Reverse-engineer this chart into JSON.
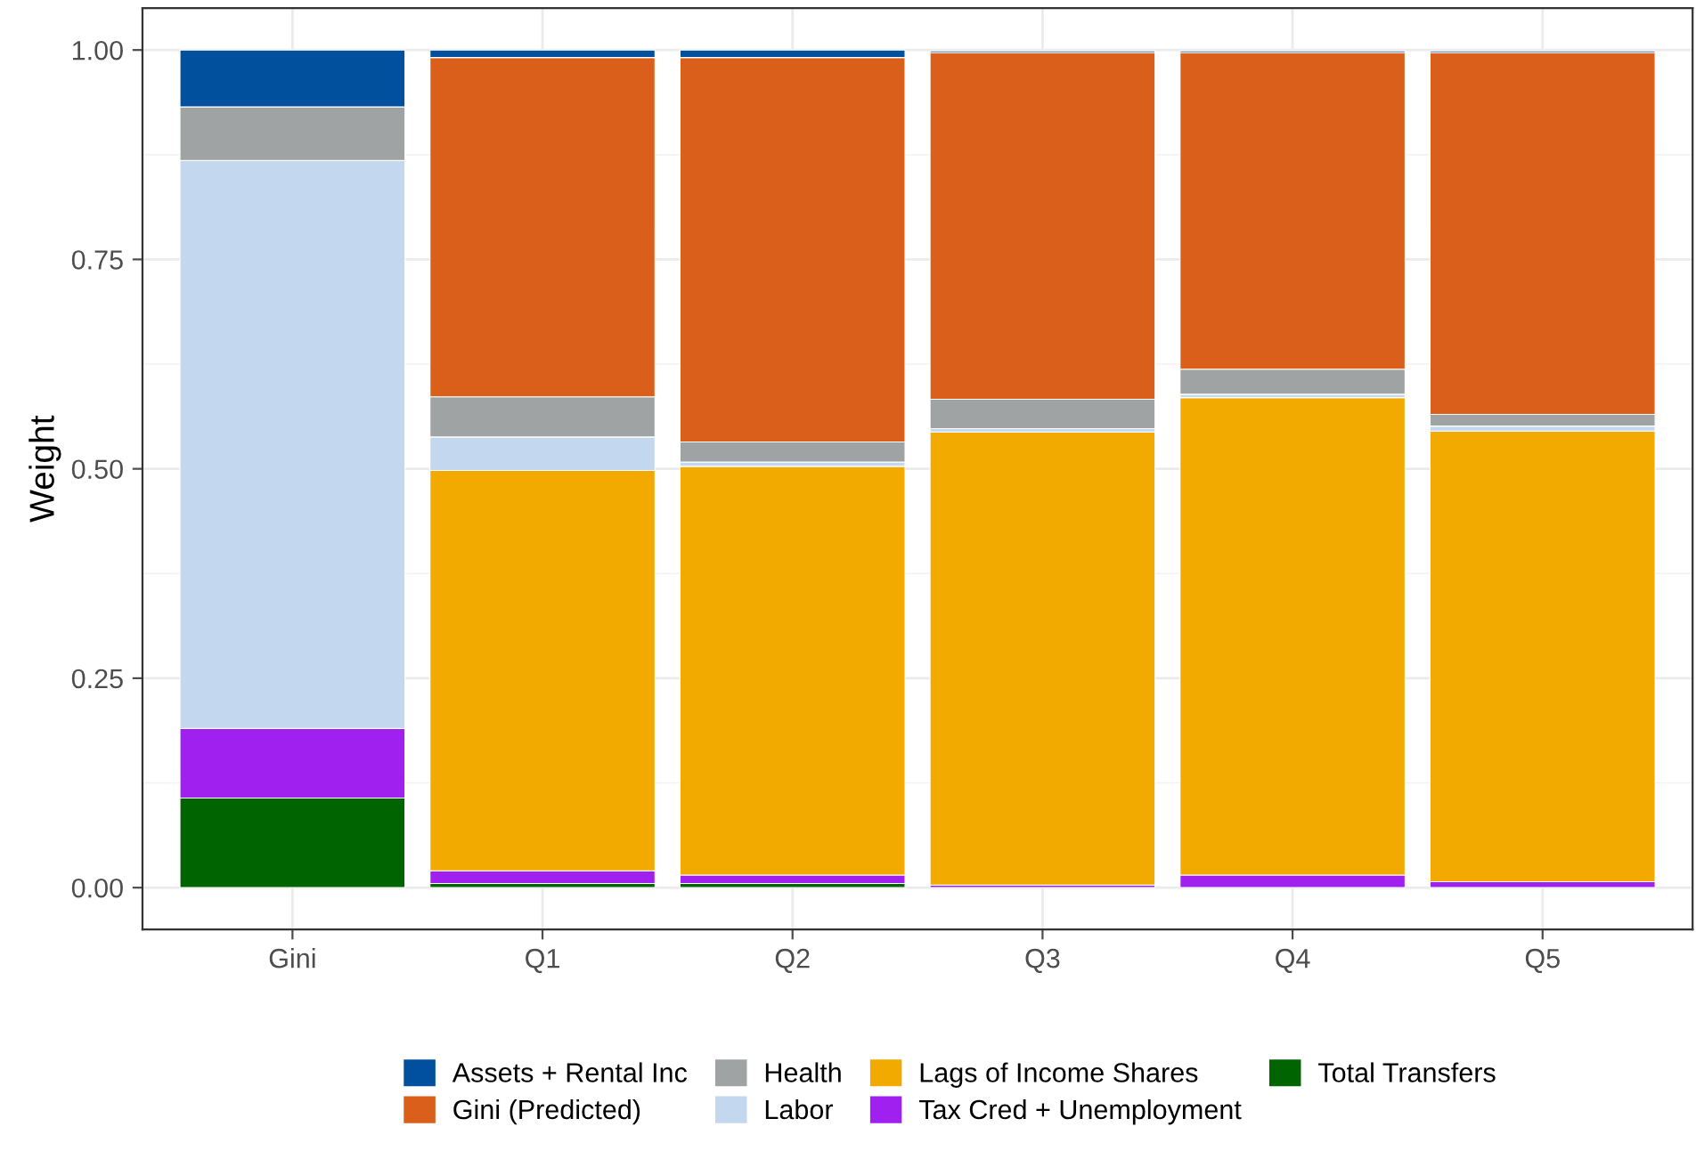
{
  "chart_data": {
    "type": "bar",
    "stacked": true,
    "ylabel": "Weight",
    "categories": [
      "Gini",
      "Q1",
      "Q2",
      "Q3",
      "Q4",
      "Q5"
    ],
    "series": [
      {
        "name": "Total Transfers",
        "color": "#006400",
        "values": [
          0.107,
          0.005,
          0.005,
          null,
          null,
          null
        ]
      },
      {
        "name": "Tax Cred + Unemployment",
        "color": "#a020f0",
        "values": [
          0.083,
          0.015,
          0.01,
          0.003,
          0.015,
          0.007
        ]
      },
      {
        "name": "Lags of Income Shares",
        "color": "#f2aa00",
        "values": [
          0,
          0.478,
          0.488,
          0.541,
          0.57,
          0.538
        ]
      },
      {
        "name": "Labor",
        "color": "#c3d7ee",
        "values": [
          0.678,
          0.04,
          0.005,
          0.004,
          0.004,
          0.006
        ]
      },
      {
        "name": "Health",
        "color": "#9fa3a3",
        "values": [
          0.064,
          0.048,
          0.024,
          0.035,
          0.03,
          0.014
        ]
      },
      {
        "name": "Gini (Predicted)",
        "color": "#d95f1a",
        "values": [
          0,
          0.405,
          0.459,
          0.414,
          0.378,
          0.432
        ]
      },
      {
        "name": "Assets + Rental Inc",
        "color": "#00509e",
        "values": [
          0.068,
          0.009,
          0.009,
          0.002,
          0.002,
          0.002
        ]
      }
    ],
    "ylim": [
      -0.05,
      1.05
    ],
    "yticks": [
      {
        "value": 0,
        "label": "0.00"
      },
      {
        "value": 0.25,
        "label": "0.25"
      },
      {
        "value": 0.5,
        "label": "0.50"
      },
      {
        "value": 0.75,
        "label": "0.75"
      },
      {
        "value": 1,
        "label": "1.00"
      }
    ],
    "grid": true,
    "legend": "bottom"
  }
}
